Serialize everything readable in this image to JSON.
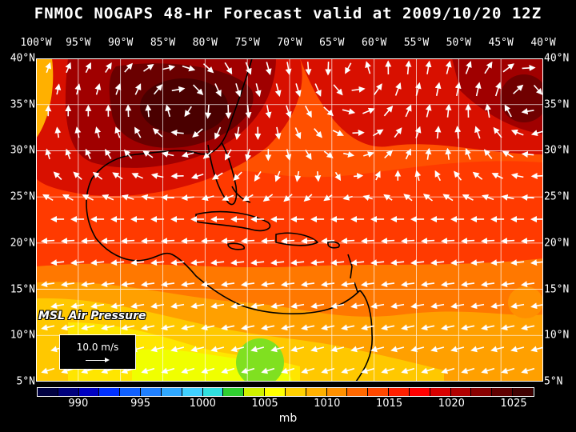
{
  "title": "FNMOC NOGAPS 48-Hr Forecast valid at 2009/10/20 12Z",
  "longitude_labels": [
    "100°W",
    "95°W",
    "90°W",
    "85°W",
    "80°W",
    "75°W",
    "70°W",
    "65°W",
    "60°W",
    "55°W",
    "50°W",
    "45°W",
    "40°W"
  ],
  "latitude_labels": [
    "40°N",
    "35°N",
    "30°N",
    "25°N",
    "20°N",
    "15°N",
    "10°N",
    "5°N"
  ],
  "field_label": "MSL Air Pressure",
  "vector_scale_label": "10.0 m/s",
  "colorbar": {
    "colors": [
      "#000040",
      "#00007c",
      "#0000c0",
      "#0030ff",
      "#1060ff",
      "#2080ff",
      "#30a8ff",
      "#40d0ff",
      "#30e0e0",
      "#30d030",
      "#d0f000",
      "#ffff00",
      "#ffd000",
      "#ffb000",
      "#ff9000",
      "#ff6800",
      "#ff4800",
      "#ff2000",
      "#ff0000",
      "#d80000",
      "#b00000",
      "#880000",
      "#600000",
      "#400000"
    ],
    "tick_labels": [
      "990",
      "995",
      "1000",
      "1005",
      "1010",
      "1015",
      "1020",
      "1025"
    ],
    "units": "mb"
  },
  "map_colors": {
    "high_dark": "#4a0000",
    "high": "#8a0000",
    "mid_red": "#e01800",
    "orange_red": "#ff4000",
    "orange": "#ff7000",
    "amber": "#ffa000",
    "yellow_orange": "#ffc800",
    "yellow": "#ffe800",
    "low_yellow": "#f0ff00",
    "green": "#80e020"
  }
}
